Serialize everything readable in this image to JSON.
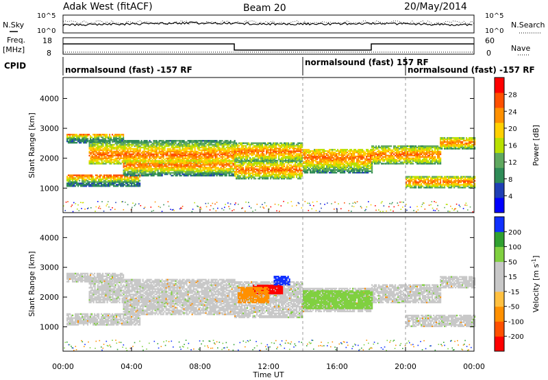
{
  "header": {
    "title": "Adak West (fitACF)",
    "beam": "Beam 20",
    "date": "20/May/2014"
  },
  "noise_panel": {
    "left_label": "N.Sky",
    "right_label": "N.Search",
    "left_ticks": [
      "10^5",
      "10^0"
    ],
    "right_ticks": [
      "10^5",
      "10^0"
    ]
  },
  "freq_panel": {
    "left_label_1": "Freq.",
    "left_label_2": "[MHz]",
    "right_label": "Nave",
    "left_ticks": [
      "18",
      "8"
    ],
    "right_ticks": [
      "60",
      "0"
    ]
  },
  "cpid_panel": {
    "label": "CPID",
    "segments": [
      {
        "start": 0,
        "end": 14,
        "text": "normalsound (fast) -157 RF"
      },
      {
        "start": 14,
        "end": 20,
        "text": "normalsound (fast) 157 RF"
      },
      {
        "start": 20,
        "end": 24,
        "text": "normalsound (fast) -157 RF"
      }
    ]
  },
  "time_axis": {
    "label": "Time UT",
    "ticks": [
      "00:00",
      "04:00",
      "08:00",
      "12:00",
      "16:00",
      "20:00",
      "00:00"
    ]
  },
  "chart_data": [
    {
      "type": "heatmap",
      "name": "power",
      "ylabel": "Slant Range [km]",
      "xlim": [
        0,
        24
      ],
      "ylim": [
        180,
        4700
      ],
      "yticks": [
        "1000",
        "2000",
        "3000",
        "4000"
      ],
      "colorbar_label": "Power [dB]",
      "colorbar_ticks": [
        "28",
        "24",
        "20",
        "16",
        "12",
        "8",
        "4"
      ],
      "colorbar_colors": [
        "#0000ff",
        "#1f3fb5",
        "#2e8b57",
        "#5fa85f",
        "#b8e000",
        "#ffd000",
        "#ff9000",
        "#ff5000",
        "#ff0000"
      ],
      "bands": [
        {
          "t0": 0.2,
          "t1": 3.5,
          "r0": 2500,
          "r1": 2800,
          "hi": 2800
        },
        {
          "t0": 0.2,
          "t1": 4.5,
          "r0": 1050,
          "r1": 1450,
          "hi": 1400
        },
        {
          "t0": 1.5,
          "t1": 10.0,
          "r0": 1800,
          "r1": 2600,
          "hi": 2100
        },
        {
          "t0": 3.5,
          "t1": 10.0,
          "r0": 1400,
          "r1": 1900,
          "hi": 1750
        },
        {
          "t0": 10.0,
          "t1": 14.0,
          "r0": 1300,
          "r1": 1900,
          "hi": 1600
        },
        {
          "t0": 10.0,
          "t1": 14.0,
          "r0": 1900,
          "r1": 2500,
          "hi": 2200
        },
        {
          "t0": 14.0,
          "t1": 18.0,
          "r0": 1500,
          "r1": 2300,
          "hi": 2000
        },
        {
          "t0": 18.0,
          "t1": 22.0,
          "r0": 1800,
          "r1": 2400,
          "hi": 2100
        },
        {
          "t0": 20.0,
          "t1": 24.0,
          "r0": 1000,
          "r1": 1400,
          "hi": 1200
        },
        {
          "t0": 22.0,
          "t1": 24.0,
          "r0": 2300,
          "r1": 2700,
          "hi": 2500
        }
      ]
    },
    {
      "type": "heatmap",
      "name": "velocity",
      "ylabel": "Slant Range [km]",
      "xlim": [
        0,
        24
      ],
      "ylim": [
        180,
        4700
      ],
      "yticks": [
        "1000",
        "2000",
        "3000",
        "4000"
      ],
      "colorbar_label": "Velocity [m s^-1]",
      "colorbar_ticks": [
        "200",
        "100",
        "50",
        "15",
        "-15",
        "-50",
        "-100",
        "-200"
      ],
      "colorbar_colors": [
        "#ff0000",
        "#ff5000",
        "#ff9000",
        "#ffc040",
        "#c8c8c8",
        "#c8c8c8",
        "#80d040",
        "#30a030",
        "#1030ff"
      ],
      "features": [
        {
          "t0": 11.0,
          "t1": 12.8,
          "r0": 2100,
          "r1": 2400,
          "color": "#ff0000"
        },
        {
          "t0": 10.2,
          "t1": 12.0,
          "r0": 1800,
          "r1": 2300,
          "color": "#ff9000"
        },
        {
          "t0": 12.3,
          "t1": 13.2,
          "r0": 2400,
          "r1": 2700,
          "color": "#1030ff"
        },
        {
          "t0": 14.0,
          "t1": 18.0,
          "r0": 1600,
          "r1": 2200,
          "color": "#80d040"
        }
      ]
    }
  ]
}
